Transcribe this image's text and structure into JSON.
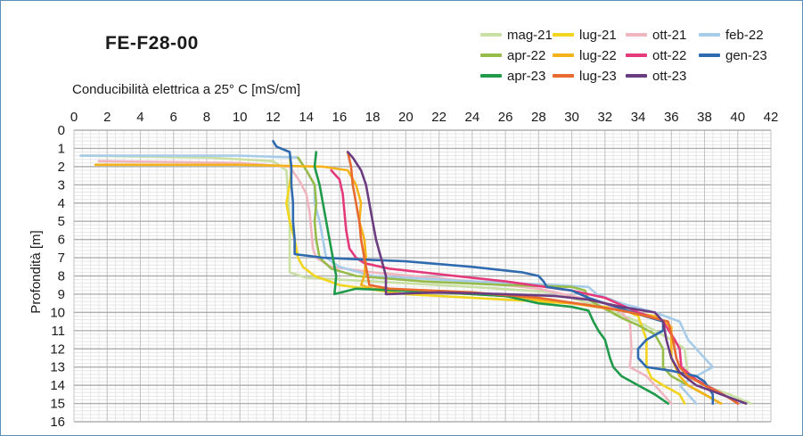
{
  "chart_data": {
    "type": "line",
    "title": "FE-F28-00",
    "xlabel": "Conducibilità elettrica a 25° C [mS/cm]",
    "ylabel": "Profondità [m]",
    "xlim": [
      0,
      42
    ],
    "ylim": [
      0,
      16
    ],
    "y_inverted": true,
    "x_ticks": [
      "0",
      "2",
      "4",
      "6",
      "8",
      "10",
      "12",
      "14",
      "16",
      "18",
      "20",
      "22",
      "24",
      "26",
      "28",
      "30",
      "32",
      "34",
      "36",
      "38",
      "40",
      "42"
    ],
    "y_ticks": [
      "0",
      "1",
      "2",
      "3",
      "4",
      "5",
      "6",
      "7",
      "8",
      "9",
      "10",
      "11",
      "12",
      "13",
      "14",
      "15",
      "16"
    ],
    "grid": true,
    "legend_position": "top-right",
    "series": [
      {
        "name": "mag-21",
        "color": "#c9dfa4",
        "points": [
          [
            0.5,
            1.4
          ],
          [
            8,
            1.5
          ],
          [
            12,
            1.7
          ],
          [
            12.8,
            2.2
          ],
          [
            12.9,
            3.5
          ],
          [
            13,
            5
          ],
          [
            13,
            6.5
          ],
          [
            13,
            7.8
          ],
          [
            14,
            8.1
          ],
          [
            18,
            8.3
          ],
          [
            24,
            8.6
          ],
          [
            29,
            8.9
          ],
          [
            32,
            9.8
          ],
          [
            34,
            10.5
          ],
          [
            36,
            11.5
          ],
          [
            36.8,
            12
          ],
          [
            37,
            13.5
          ],
          [
            38,
            14
          ],
          [
            39.5,
            14.5
          ],
          [
            40.8,
            15
          ]
        ]
      },
      {
        "name": "lug-21",
        "color": "#f1d51e",
        "points": [
          [
            13,
            1.5
          ],
          [
            13.1,
            2.2
          ],
          [
            13,
            3
          ],
          [
            12.8,
            4
          ],
          [
            13,
            5
          ],
          [
            13.3,
            6
          ],
          [
            13.5,
            7
          ],
          [
            13.8,
            7.5
          ],
          [
            14.5,
            8
          ],
          [
            16,
            8.5
          ],
          [
            20,
            9
          ],
          [
            26,
            9.3
          ],
          [
            30,
            9.5
          ],
          [
            33,
            9.8
          ],
          [
            34,
            10.2
          ],
          [
            34.5,
            11.5
          ],
          [
            34.5,
            13
          ],
          [
            34.8,
            13.6
          ],
          [
            35.5,
            14
          ],
          [
            36.5,
            14.5
          ],
          [
            36.8,
            15
          ]
        ]
      },
      {
        "name": "ott-21",
        "color": "#f0b6c0",
        "points": [
          [
            1.5,
            1.7
          ],
          [
            10,
            1.8
          ],
          [
            13,
            2
          ],
          [
            13.6,
            2.8
          ],
          [
            14,
            3.5
          ],
          [
            14.2,
            4.5
          ],
          [
            14.3,
            5.5
          ],
          [
            14.4,
            6.5
          ],
          [
            14.6,
            7
          ],
          [
            15.5,
            7.5
          ],
          [
            18,
            7.8
          ],
          [
            24,
            8.3
          ],
          [
            28,
            8.7
          ],
          [
            32,
            9.5
          ],
          [
            33,
            10
          ],
          [
            33.5,
            10.5
          ],
          [
            33.6,
            12
          ],
          [
            33.5,
            13
          ],
          [
            34.5,
            13.5
          ],
          [
            35.5,
            14.5
          ],
          [
            36,
            15
          ]
        ]
      },
      {
        "name": "feb-22",
        "color": "#a7cce9",
        "points": [
          [
            0.4,
            1.4
          ],
          [
            10,
            1.4
          ],
          [
            13.5,
            1.5
          ],
          [
            14,
            2.2
          ],
          [
            14.5,
            3
          ],
          [
            14.5,
            4
          ],
          [
            14.8,
            5
          ],
          [
            15,
            6
          ],
          [
            15.2,
            7
          ],
          [
            16,
            7.5
          ],
          [
            18,
            8
          ],
          [
            24,
            8.3
          ],
          [
            29,
            8.5
          ],
          [
            31,
            8.6
          ],
          [
            31.5,
            9
          ],
          [
            33,
            9.5
          ],
          [
            35,
            10
          ],
          [
            36.5,
            10.5
          ],
          [
            37,
            11.5
          ],
          [
            37.5,
            12
          ],
          [
            38,
            12.5
          ],
          [
            38.5,
            13
          ],
          [
            37.5,
            13.5
          ],
          [
            36.5,
            14
          ],
          [
            37,
            14.5
          ],
          [
            37.5,
            15
          ]
        ]
      },
      {
        "name": "apr-22",
        "color": "#97bc4b",
        "points": [
          [
            13.5,
            1.5
          ],
          [
            14,
            2.2
          ],
          [
            14.5,
            3
          ],
          [
            14.6,
            4
          ],
          [
            14.5,
            5
          ],
          [
            14.6,
            6
          ],
          [
            14.8,
            7
          ],
          [
            15.5,
            7.6
          ],
          [
            17,
            8
          ],
          [
            21,
            8.3
          ],
          [
            26,
            8.5
          ],
          [
            30,
            8.6
          ],
          [
            30.8,
            8.8
          ],
          [
            31,
            9.3
          ],
          [
            32,
            9.8
          ],
          [
            33,
            10.3
          ],
          [
            34,
            10.7
          ],
          [
            35,
            11.2
          ],
          [
            35.5,
            12
          ],
          [
            35.5,
            13
          ],
          [
            36,
            13.5
          ],
          [
            37,
            14
          ],
          [
            38,
            14.5
          ],
          [
            39,
            15
          ]
        ]
      },
      {
        "name": "lug-22",
        "color": "#f4b31b",
        "points": [
          [
            1.3,
            1.9
          ],
          [
            10,
            1.9
          ],
          [
            15,
            2
          ],
          [
            16.5,
            2.2
          ],
          [
            17,
            3
          ],
          [
            17.3,
            4
          ],
          [
            17.2,
            5
          ],
          [
            17.5,
            6
          ],
          [
            17.6,
            7
          ],
          [
            17.5,
            8
          ],
          [
            17.3,
            8.5
          ],
          [
            18,
            8.7
          ],
          [
            22,
            8.9
          ],
          [
            26,
            9.1
          ],
          [
            30,
            9.5
          ],
          [
            33,
            9.9
          ],
          [
            35,
            10.2
          ],
          [
            36,
            10.8
          ],
          [
            36,
            11.5
          ],
          [
            36,
            12.5
          ],
          [
            36.5,
            13.5
          ],
          [
            37,
            14
          ],
          [
            38,
            14.5
          ],
          [
            39,
            15
          ]
        ]
      },
      {
        "name": "ott-22",
        "color": "#e4397a",
        "points": [
          [
            15.5,
            2.2
          ],
          [
            16,
            2.7
          ],
          [
            16.2,
            3.5
          ],
          [
            16.3,
            4.5
          ],
          [
            16.4,
            5.5
          ],
          [
            16.6,
            6.5
          ],
          [
            17,
            7
          ],
          [
            17.5,
            7.3
          ],
          [
            19,
            7.6
          ],
          [
            22,
            7.9
          ],
          [
            26,
            8.3
          ],
          [
            30,
            8.8
          ],
          [
            32,
            9.2
          ],
          [
            33,
            9.6
          ],
          [
            34,
            10
          ],
          [
            35.5,
            10.5
          ],
          [
            36.2,
            11.5
          ],
          [
            36.5,
            12
          ],
          [
            36.6,
            13
          ],
          [
            37.5,
            13.7
          ],
          [
            38.5,
            14.2
          ],
          [
            39.5,
            14.7
          ],
          [
            40,
            15
          ]
        ]
      },
      {
        "name": "gen-23",
        "color": "#2f6bae",
        "points": [
          [
            12,
            0.6
          ],
          [
            12.2,
            0.9
          ],
          [
            13,
            1.2
          ],
          [
            13.1,
            2
          ],
          [
            13.1,
            3
          ],
          [
            13.2,
            4
          ],
          [
            13.2,
            5
          ],
          [
            13.3,
            6
          ],
          [
            13.3,
            6.8
          ],
          [
            15,
            7
          ],
          [
            20,
            7.2
          ],
          [
            24,
            7.5
          ],
          [
            27,
            7.8
          ],
          [
            28,
            8
          ],
          [
            28.3,
            8.3
          ],
          [
            28.5,
            8.6
          ],
          [
            30,
            8.8
          ],
          [
            31,
            9.2
          ],
          [
            32,
            9.5
          ],
          [
            33,
            9.8
          ],
          [
            34,
            10.1
          ],
          [
            35.5,
            10.5
          ],
          [
            35.5,
            11
          ],
          [
            34.5,
            11.5
          ],
          [
            34,
            12
          ],
          [
            34,
            12.5
          ],
          [
            34.5,
            13
          ],
          [
            36,
            13.2
          ],
          [
            37.5,
            13.5
          ],
          [
            38,
            13.8
          ],
          [
            38.5,
            14.5
          ],
          [
            38.5,
            15
          ]
        ]
      },
      {
        "name": "apr-23",
        "color": "#209a4b",
        "points": [
          [
            14.6,
            1.2
          ],
          [
            14.5,
            2
          ],
          [
            14.8,
            3
          ],
          [
            15,
            4
          ],
          [
            15.2,
            5
          ],
          [
            15.4,
            6
          ],
          [
            15.6,
            7
          ],
          [
            15.8,
            8
          ],
          [
            15.7,
            9
          ],
          [
            17,
            8.7
          ],
          [
            22,
            8.9
          ],
          [
            26,
            9.1
          ],
          [
            28,
            9.5
          ],
          [
            30,
            9.7
          ],
          [
            31,
            9.9
          ],
          [
            31.3,
            10.5
          ],
          [
            31.6,
            11
          ],
          [
            32,
            11.5
          ],
          [
            32.3,
            12.5
          ],
          [
            32.5,
            13
          ],
          [
            33,
            13.5
          ],
          [
            34,
            14
          ],
          [
            35,
            14.5
          ],
          [
            35.8,
            15
          ]
        ]
      },
      {
        "name": "lug-23",
        "color": "#e86a2e",
        "points": [
          [
            16.5,
            1.2
          ],
          [
            16.7,
            2
          ],
          [
            16.8,
            3
          ],
          [
            17,
            4
          ],
          [
            17.2,
            5
          ],
          [
            17.3,
            6
          ],
          [
            17.5,
            7
          ],
          [
            17.7,
            8
          ],
          [
            17.8,
            8.5
          ],
          [
            19,
            8.7
          ],
          [
            24,
            8.9
          ],
          [
            28,
            9.2
          ],
          [
            31,
            9.6
          ],
          [
            33,
            9.9
          ],
          [
            34,
            10.1
          ],
          [
            35.8,
            10.5
          ],
          [
            36.1,
            11.5
          ],
          [
            36.3,
            12.5
          ],
          [
            36.5,
            13
          ],
          [
            37,
            13.5
          ],
          [
            38,
            14
          ],
          [
            39.5,
            14.7
          ],
          [
            40,
            15
          ]
        ]
      },
      {
        "name": "ott-23",
        "color": "#6b3c80",
        "points": [
          [
            16.5,
            1.2
          ],
          [
            16.8,
            1.5
          ],
          [
            17.3,
            2.2
          ],
          [
            17.6,
            3
          ],
          [
            17.8,
            4
          ],
          [
            18,
            5
          ],
          [
            18.2,
            6
          ],
          [
            18.5,
            7
          ],
          [
            18.8,
            8
          ],
          [
            18.8,
            9
          ],
          [
            22,
            8.9
          ],
          [
            26,
            9
          ],
          [
            29,
            9.1
          ],
          [
            31,
            9.3
          ],
          [
            33,
            9.7
          ],
          [
            35,
            10
          ],
          [
            35.5,
            10.5
          ],
          [
            35.7,
            11.5
          ],
          [
            36,
            12.5
          ],
          [
            36.5,
            13.3
          ],
          [
            37.5,
            14
          ],
          [
            39,
            14.5
          ],
          [
            40.5,
            15
          ]
        ]
      }
    ]
  }
}
